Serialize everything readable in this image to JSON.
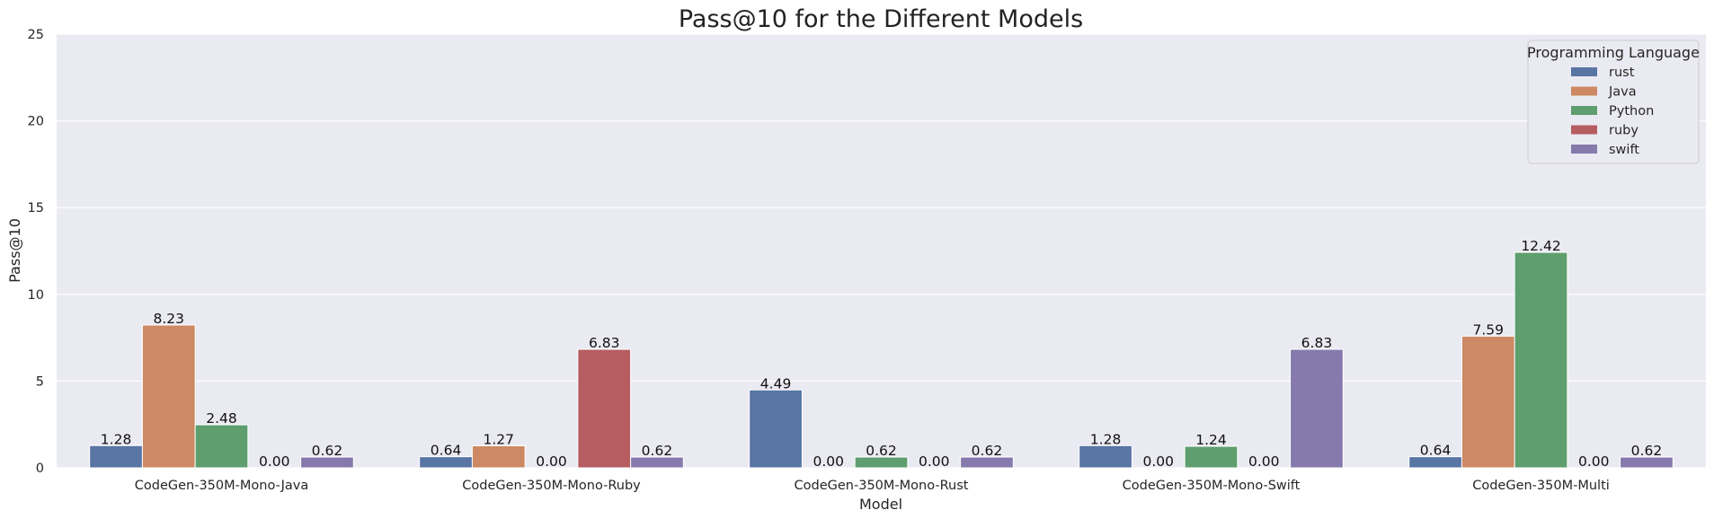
{
  "chart_data": {
    "type": "bar",
    "title": "Pass@10 for the Different Models",
    "xlabel": "Model",
    "ylabel": "Pass@10",
    "ylim": [
      0,
      25
    ],
    "yticks": [
      "0",
      "5",
      "10",
      "15",
      "20",
      "25"
    ],
    "grid": true,
    "legend_title": "Programming Language",
    "legend_position": "top-right",
    "categories": [
      "CodeGen-350M-Mono-Java",
      "CodeGen-350M-Mono-Ruby",
      "CodeGen-350M-Mono-Rust",
      "CodeGen-350M-Mono-Swift",
      "CodeGen-350M-Multi"
    ],
    "series": [
      {
        "name": "rust",
        "color": "#5875a4",
        "values": [
          1.28,
          0.64,
          4.49,
          1.28,
          0.64
        ],
        "labels": [
          "1.28",
          "0.64",
          "4.49",
          "1.28",
          "0.64"
        ]
      },
      {
        "name": "Java",
        "color": "#cc8963",
        "values": [
          8.23,
          1.27,
          0.0,
          0.0,
          7.59
        ],
        "labels": [
          "8.23",
          "1.27",
          "0.00",
          "0.00",
          "7.59"
        ]
      },
      {
        "name": "Python",
        "color": "#5f9e6e",
        "values": [
          2.48,
          0.0,
          0.62,
          1.24,
          12.42
        ],
        "labels": [
          "2.48",
          "0.00",
          "0.62",
          "1.24",
          "12.42"
        ]
      },
      {
        "name": "ruby",
        "color": "#b55d60",
        "values": [
          0.0,
          6.83,
          0.0,
          0.0,
          0.0
        ],
        "labels": [
          "0.00",
          "6.83",
          "0.00",
          "0.00",
          "0.00"
        ]
      },
      {
        "name": "swift",
        "color": "#857aab",
        "values": [
          0.62,
          0.62,
          0.62,
          6.83,
          0.62
        ],
        "labels": [
          "0.62",
          "0.62",
          "0.62",
          "6.83",
          "0.62"
        ]
      }
    ]
  }
}
